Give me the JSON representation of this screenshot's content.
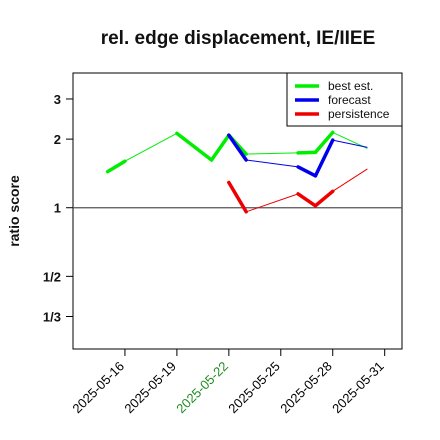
{
  "chart_data": {
    "type": "line",
    "title": "rel. edge displacement, IE/IIEE",
    "ylabel": "ratio score",
    "xlabel": "",
    "y_scale": "log2",
    "ylim": [
      0.24,
      3.9
    ],
    "yticks": [
      {
        "value": 0.3333,
        "label": "1/3"
      },
      {
        "value": 0.5,
        "label": "1/2"
      },
      {
        "value": 1,
        "label": "1"
      },
      {
        "value": 2,
        "label": "2"
      },
      {
        "value": 3,
        "label": "3"
      }
    ],
    "xlim": [
      "2025-05-13",
      "2025-06-01"
    ],
    "xticks": [
      {
        "date": "2025-05-16",
        "label": "2025-05-16",
        "color": "#000000"
      },
      {
        "date": "2025-05-19",
        "label": "2025-05-19",
        "color": "#000000"
      },
      {
        "date": "2025-05-22",
        "label": "2025-05-22",
        "color": "#228b22"
      },
      {
        "date": "2025-05-25",
        "label": "2025-05-25",
        "color": "#000000"
      },
      {
        "date": "2025-05-28",
        "label": "2025-05-28",
        "color": "#000000"
      },
      {
        "date": "2025-05-31",
        "label": "2025-05-31",
        "color": "#000000"
      }
    ],
    "reference_line": 1,
    "legend": {
      "position": "top-right"
    },
    "series": [
      {
        "name": "best est.",
        "color": "#00ee00",
        "points": [
          [
            "2025-05-15",
            1.44
          ],
          [
            "2025-05-16",
            1.6
          ],
          [
            "2025-05-19",
            2.12
          ],
          [
            "2025-05-21",
            1.62
          ],
          [
            "2025-05-22",
            2.08
          ],
          [
            "2025-05-23",
            1.72
          ],
          [
            "2025-05-26",
            1.74
          ],
          [
            "2025-05-27",
            1.75
          ],
          [
            "2025-05-28",
            2.14
          ],
          [
            "2025-05-30",
            1.82
          ]
        ],
        "emphasized_segments": [
          [
            0,
            1
          ],
          [
            2,
            3
          ],
          [
            3,
            4
          ],
          [
            4,
            5
          ],
          [
            6,
            7
          ],
          [
            7,
            8
          ]
        ]
      },
      {
        "name": "forecast",
        "color": "#0000ee",
        "points": [
          [
            "2025-05-22",
            2.08
          ],
          [
            "2025-05-23",
            1.62
          ],
          [
            "2025-05-26",
            1.51
          ],
          [
            "2025-05-27",
            1.38
          ],
          [
            "2025-05-28",
            1.98
          ],
          [
            "2025-05-30",
            1.84
          ]
        ],
        "emphasized_segments": [
          [
            0,
            1
          ],
          [
            2,
            3
          ],
          [
            3,
            4
          ]
        ]
      },
      {
        "name": "persistence",
        "color": "#ee0000",
        "points": [
          [
            "2025-05-22",
            1.29
          ],
          [
            "2025-05-23",
            0.96
          ],
          [
            "2025-05-26",
            1.15
          ],
          [
            "2025-05-27",
            1.02
          ],
          [
            "2025-05-28",
            1.18
          ],
          [
            "2025-05-30",
            1.48
          ]
        ],
        "emphasized_segments": [
          [
            0,
            1
          ],
          [
            2,
            3
          ],
          [
            3,
            4
          ]
        ]
      }
    ]
  }
}
